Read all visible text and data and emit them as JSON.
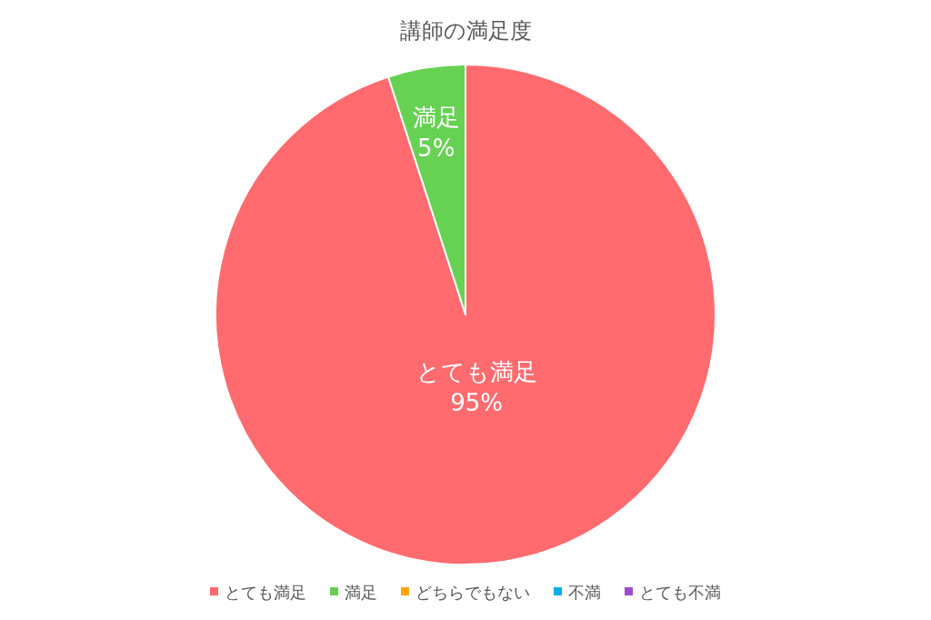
{
  "chart_data": {
    "type": "pie",
    "title": "講師の満足度",
    "categories": [
      "とても満足",
      "満足",
      "どちらでもない",
      "不満",
      "とても不満"
    ],
    "values": [
      95,
      5,
      0,
      0,
      0
    ],
    "colors": [
      "#ff6b6f",
      "#66d152",
      "#ffa600",
      "#00b0f0",
      "#9b4dca"
    ],
    "value_labels": [
      "95%",
      "5%",
      null,
      null,
      null
    ],
    "legend": "bottom"
  }
}
